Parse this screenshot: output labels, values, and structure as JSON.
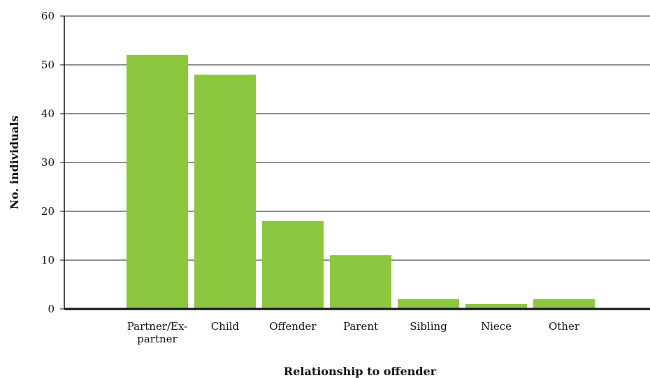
{
  "chart_data": {
    "type": "bar",
    "categories": [
      "Partner/Ex-partner",
      "Child",
      "Offender",
      "Parent",
      "Sibling",
      "Niece",
      "Other"
    ],
    "category_label_lines": [
      [
        "Partner/Ex-",
        "partner"
      ],
      [
        "Child"
      ],
      [
        "Offender"
      ],
      [
        "Parent"
      ],
      [
        "Sibling"
      ],
      [
        "Niece"
      ],
      [
        "Other"
      ]
    ],
    "values": [
      52,
      48,
      18,
      11,
      2,
      1,
      2
    ],
    "xlabel": "Relationship to offender",
    "ylabel": "No. individuals",
    "ylim": [
      0,
      60
    ],
    "yticks": [
      0,
      10,
      20,
      30,
      40,
      50,
      60
    ],
    "ytick_labels": [
      "0",
      "10",
      "20",
      "30",
      "40",
      "50",
      "60"
    ],
    "grid": true,
    "bar_color": "#8dc63f",
    "grid_color": "#222222",
    "axis_color": "#111111"
  }
}
